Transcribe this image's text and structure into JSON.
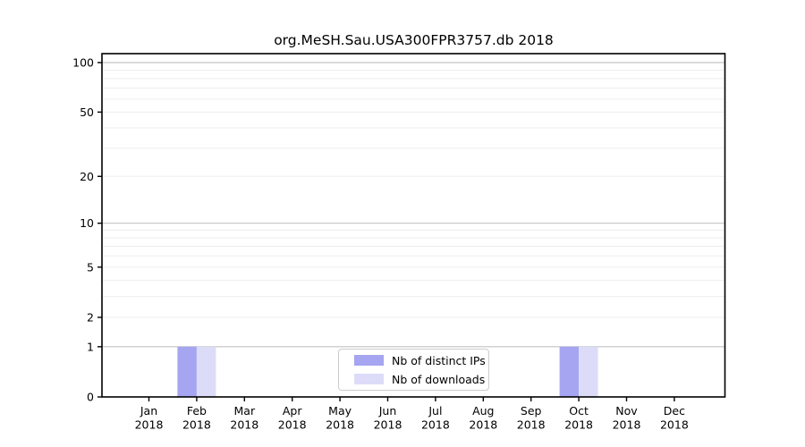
{
  "chart_data": {
    "type": "bar",
    "title": "org.MeSH.Sau.USA300FPR3757.db 2018",
    "x_axis": {
      "categories": [
        "Jan",
        "Feb",
        "Mar",
        "Apr",
        "May",
        "Jun",
        "Jul",
        "Aug",
        "Sep",
        "Oct",
        "Nov",
        "Dec"
      ],
      "year": "2018"
    },
    "y_axis": {
      "scale": "log1p",
      "ticks": [
        0,
        1,
        2,
        5,
        10,
        20,
        50,
        100
      ],
      "major_gridlines": [
        1,
        10,
        100
      ],
      "minor_gridlines": [
        2,
        3,
        4,
        5,
        6,
        7,
        8,
        9,
        20,
        30,
        40,
        50,
        60,
        70,
        80,
        90
      ],
      "ylim": [
        0,
        111
      ]
    },
    "series": [
      {
        "name": "Nb of distinct IPs",
        "color": "#a5a5f1",
        "values": [
          0,
          1,
          0,
          0,
          0,
          0,
          0,
          0,
          0,
          1,
          0,
          0
        ]
      },
      {
        "name": "Nb of downloads",
        "color": "#dcdcf8",
        "values": [
          0,
          1,
          0,
          0,
          0,
          0,
          0,
          0,
          0,
          1,
          0,
          0
        ]
      }
    ],
    "legend": {
      "position": "lower center",
      "border_color": "#cccccc"
    },
    "grid": {
      "minor_color": "#ededed",
      "major_color": "#c3c3c3"
    },
    "frame_color": "#000000",
    "background": "#ffffff"
  }
}
